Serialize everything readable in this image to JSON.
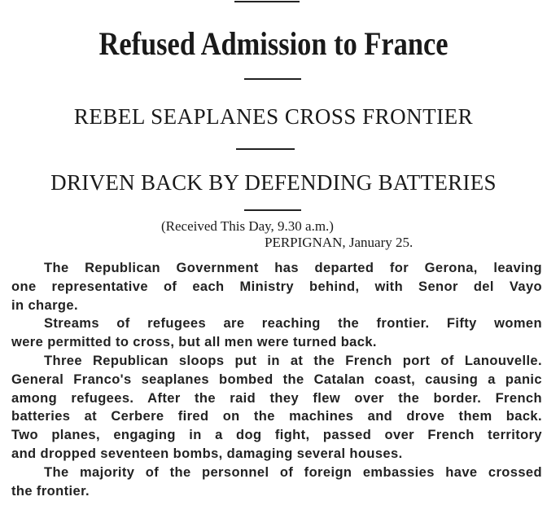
{
  "headline": "Refused Admission to France",
  "subheadline_1": "REBEL SEAPLANES CROSS FRONTIER",
  "subheadline_2": "DRIVEN BACK BY DEFENDING BATTERIES",
  "received": "(Received This Day, 9.30 a.m.)",
  "dateline": "PERPIGNAN, January 25.",
  "lines": [
    "The Republican Government has departed for Gerona, leaving",
    "one representative of each Ministry behind, with Senor del Vayo",
    "in charge.",
    "Streams of refugees are reaching the frontier.   Fifty women",
    "were permitted to cross, but all men were turned back.",
    "Three Republican sloops put in at the French port of Lanouvelle.",
    "General Franco's seaplanes bombed the Catalan coast, causing a panic",
    "among refugees.   After the raid they flew over the border.   French",
    "batteries at Cerbere fired on the machines and drove them back.",
    "Two planes, engaging in a dog fight, passed over French territory",
    "and dropped seventeen bombs, damaging several houses.",
    "The majority of the personnel of foreign embassies have crossed",
    "the frontier."
  ]
}
